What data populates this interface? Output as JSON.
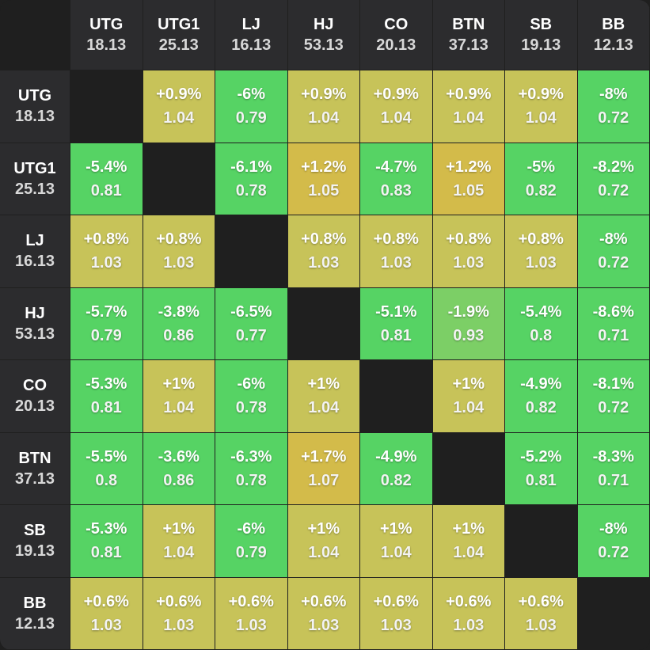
{
  "positions": [
    {
      "name": "UTG",
      "stack": "18.13"
    },
    {
      "name": "UTG1",
      "stack": "25.13"
    },
    {
      "name": "LJ",
      "stack": "16.13"
    },
    {
      "name": "HJ",
      "stack": "53.13"
    },
    {
      "name": "CO",
      "stack": "20.13"
    },
    {
      "name": "BTN",
      "stack": "37.13"
    },
    {
      "name": "SB",
      "stack": "19.13"
    },
    {
      "name": "BB",
      "stack": "12.13"
    }
  ],
  "colors": {
    "green": "#56d364",
    "olive": "#c7c359",
    "gold": "#d3bb4a",
    "muted_green": "#7ccf66",
    "header_bg": "#2c2c2e",
    "empty_bg": "#1f1f1f"
  },
  "matrix": [
    [
      null,
      {
        "pct": "+0.9%",
        "ratio": "1.04",
        "color": "olive"
      },
      {
        "pct": "-6%",
        "ratio": "0.79",
        "color": "green"
      },
      {
        "pct": "+0.9%",
        "ratio": "1.04",
        "color": "olive"
      },
      {
        "pct": "+0.9%",
        "ratio": "1.04",
        "color": "olive"
      },
      {
        "pct": "+0.9%",
        "ratio": "1.04",
        "color": "olive"
      },
      {
        "pct": "+0.9%",
        "ratio": "1.04",
        "color": "olive"
      },
      {
        "pct": "-8%",
        "ratio": "0.72",
        "color": "green"
      }
    ],
    [
      {
        "pct": "-5.4%",
        "ratio": "0.81",
        "color": "green"
      },
      null,
      {
        "pct": "-6.1%",
        "ratio": "0.78",
        "color": "green"
      },
      {
        "pct": "+1.2%",
        "ratio": "1.05",
        "color": "gold"
      },
      {
        "pct": "-4.7%",
        "ratio": "0.83",
        "color": "green"
      },
      {
        "pct": "+1.2%",
        "ratio": "1.05",
        "color": "gold"
      },
      {
        "pct": "-5%",
        "ratio": "0.82",
        "color": "green"
      },
      {
        "pct": "-8.2%",
        "ratio": "0.72",
        "color": "green"
      }
    ],
    [
      {
        "pct": "+0.8%",
        "ratio": "1.03",
        "color": "olive"
      },
      {
        "pct": "+0.8%",
        "ratio": "1.03",
        "color": "olive"
      },
      null,
      {
        "pct": "+0.8%",
        "ratio": "1.03",
        "color": "olive"
      },
      {
        "pct": "+0.8%",
        "ratio": "1.03",
        "color": "olive"
      },
      {
        "pct": "+0.8%",
        "ratio": "1.03",
        "color": "olive"
      },
      {
        "pct": "+0.8%",
        "ratio": "1.03",
        "color": "olive"
      },
      {
        "pct": "-8%",
        "ratio": "0.72",
        "color": "green"
      }
    ],
    [
      {
        "pct": "-5.7%",
        "ratio": "0.79",
        "color": "green"
      },
      {
        "pct": "-3.8%",
        "ratio": "0.86",
        "color": "green"
      },
      {
        "pct": "-6.5%",
        "ratio": "0.77",
        "color": "green"
      },
      null,
      {
        "pct": "-5.1%",
        "ratio": "0.81",
        "color": "green"
      },
      {
        "pct": "-1.9%",
        "ratio": "0.93",
        "color": "muted_green"
      },
      {
        "pct": "-5.4%",
        "ratio": "0.8",
        "color": "green"
      },
      {
        "pct": "-8.6%",
        "ratio": "0.71",
        "color": "green"
      }
    ],
    [
      {
        "pct": "-5.3%",
        "ratio": "0.81",
        "color": "green"
      },
      {
        "pct": "+1%",
        "ratio": "1.04",
        "color": "olive"
      },
      {
        "pct": "-6%",
        "ratio": "0.78",
        "color": "green"
      },
      {
        "pct": "+1%",
        "ratio": "1.04",
        "color": "olive"
      },
      null,
      {
        "pct": "+1%",
        "ratio": "1.04",
        "color": "olive"
      },
      {
        "pct": "-4.9%",
        "ratio": "0.82",
        "color": "green"
      },
      {
        "pct": "-8.1%",
        "ratio": "0.72",
        "color": "green"
      }
    ],
    [
      {
        "pct": "-5.5%",
        "ratio": "0.8",
        "color": "green"
      },
      {
        "pct": "-3.6%",
        "ratio": "0.86",
        "color": "green"
      },
      {
        "pct": "-6.3%",
        "ratio": "0.78",
        "color": "green"
      },
      {
        "pct": "+1.7%",
        "ratio": "1.07",
        "color": "gold"
      },
      {
        "pct": "-4.9%",
        "ratio": "0.82",
        "color": "green"
      },
      null,
      {
        "pct": "-5.2%",
        "ratio": "0.81",
        "color": "green"
      },
      {
        "pct": "-8.3%",
        "ratio": "0.71",
        "color": "green"
      }
    ],
    [
      {
        "pct": "-5.3%",
        "ratio": "0.81",
        "color": "green"
      },
      {
        "pct": "+1%",
        "ratio": "1.04",
        "color": "olive"
      },
      {
        "pct": "-6%",
        "ratio": "0.79",
        "color": "green"
      },
      {
        "pct": "+1%",
        "ratio": "1.04",
        "color": "olive"
      },
      {
        "pct": "+1%",
        "ratio": "1.04",
        "color": "olive"
      },
      {
        "pct": "+1%",
        "ratio": "1.04",
        "color": "olive"
      },
      null,
      {
        "pct": "-8%",
        "ratio": "0.72",
        "color": "green"
      }
    ],
    [
      {
        "pct": "+0.6%",
        "ratio": "1.03",
        "color": "olive"
      },
      {
        "pct": "+0.6%",
        "ratio": "1.03",
        "color": "olive"
      },
      {
        "pct": "+0.6%",
        "ratio": "1.03",
        "color": "olive"
      },
      {
        "pct": "+0.6%",
        "ratio": "1.03",
        "color": "olive"
      },
      {
        "pct": "+0.6%",
        "ratio": "1.03",
        "color": "olive"
      },
      {
        "pct": "+0.6%",
        "ratio": "1.03",
        "color": "olive"
      },
      {
        "pct": "+0.6%",
        "ratio": "1.03",
        "color": "olive"
      },
      null
    ]
  ]
}
